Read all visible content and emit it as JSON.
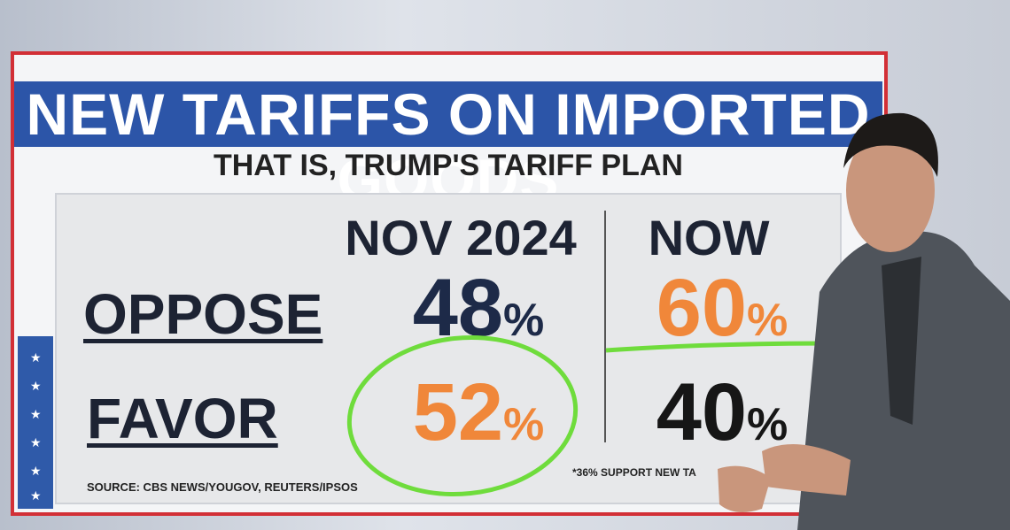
{
  "header": {
    "title": "NEW TARIFFS ON IMPORTED GOODS",
    "subtitle": "THAT IS, TRUMP'S TARIFF PLAN"
  },
  "table": {
    "columns": [
      "NOV 2024",
      "NOW"
    ],
    "rows": [
      {
        "label": "OPPOSE",
        "cells": [
          {
            "number": "48",
            "sign": "%"
          },
          {
            "number": "60",
            "sign": "%"
          }
        ]
      },
      {
        "label": "FAVOR",
        "cells": [
          {
            "number": "52",
            "sign": "%"
          },
          {
            "number": "40",
            "sign": "%"
          }
        ]
      }
    ]
  },
  "footer": {
    "source": "SOURCE: CBS NEWS/YOUGOV, REUTERS/IPSOS",
    "note": "*36% SUPPORT NEW TA"
  }
}
